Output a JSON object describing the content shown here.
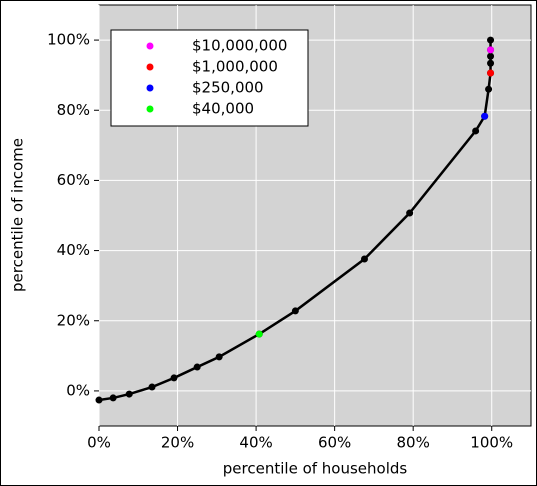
{
  "chart_data": {
    "type": "line",
    "xlabel": "percentile of households",
    "ylabel": "percentile of income",
    "xlim": [
      0,
      110
    ],
    "ylim": [
      -10,
      110
    ],
    "xticks": [
      {
        "value": 0,
        "label": "0%"
      },
      {
        "value": 20,
        "label": "20%"
      },
      {
        "value": 40,
        "label": "40%"
      },
      {
        "value": 60,
        "label": "60%"
      },
      {
        "value": 80,
        "label": "80%"
      },
      {
        "value": 100,
        "label": "100%"
      }
    ],
    "yticks": [
      {
        "value": 0,
        "label": "0%"
      },
      {
        "value": 20,
        "label": "20%"
      },
      {
        "value": 40,
        "label": "40%"
      },
      {
        "value": 60,
        "label": "60%"
      },
      {
        "value": 80,
        "label": "80%"
      },
      {
        "value": 100,
        "label": "100%"
      }
    ],
    "grid": true,
    "legend": "upper left",
    "line": {
      "color": "#000000",
      "x": [
        0,
        3.6,
        7.7,
        13.5,
        19.1,
        25,
        30.6,
        40.8,
        50,
        67.6,
        79.1,
        95.9,
        98.2,
        99.2,
        99.7,
        99.7,
        99.7,
        99.7,
        99.7
      ],
      "y": [
        -2.6,
        -2,
        -0.9,
        1.1,
        3.7,
        6.8,
        9.7,
        16.2,
        22.8,
        37.6,
        50.7,
        74.1,
        78.3,
        86,
        90.6,
        93.4,
        95.4,
        97.2,
        100
      ]
    },
    "series": [
      {
        "name": "$10,000,000",
        "color": "#ff00ff",
        "x": [
          99.7
        ],
        "y": [
          97.2
        ]
      },
      {
        "name": "$1,000,000",
        "color": "#ff0000",
        "x": [
          99.7
        ],
        "y": [
          90.6
        ]
      },
      {
        "name": "$250,000",
        "color": "#0000ff",
        "x": [
          98.2
        ],
        "y": [
          78.3
        ]
      },
      {
        "name": "$40,000",
        "color": "#00ff00",
        "x": [
          40.8
        ],
        "y": [
          16.2
        ]
      }
    ]
  }
}
